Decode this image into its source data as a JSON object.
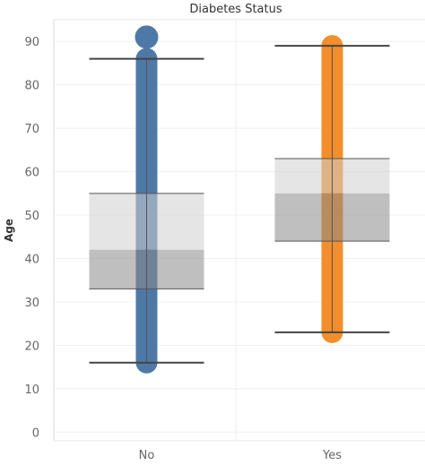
{
  "chart_data": {
    "type": "box",
    "title": "Diabetes Status",
    "xlabel": "",
    "ylabel": "Age",
    "ylim": [
      -2,
      95
    ],
    "yticks": [
      0,
      10,
      20,
      30,
      40,
      50,
      60,
      70,
      80,
      90
    ],
    "grid": true,
    "categories": [
      "No",
      "Yes"
    ],
    "series": [
      {
        "category": "No",
        "color": "#4e79a7",
        "whisker_low": 16,
        "q1": 33,
        "median": 42,
        "q3": 55,
        "whisker_high": 86,
        "points_min": 16,
        "points_max": 86,
        "outliers": [
          91
        ]
      },
      {
        "category": "Yes",
        "color": "#f28e2b",
        "whisker_low": 23,
        "q1": 44,
        "median": 55,
        "q3": 63,
        "whisker_high": 89,
        "points_min": 23,
        "points_max": 89,
        "outliers": []
      }
    ]
  }
}
